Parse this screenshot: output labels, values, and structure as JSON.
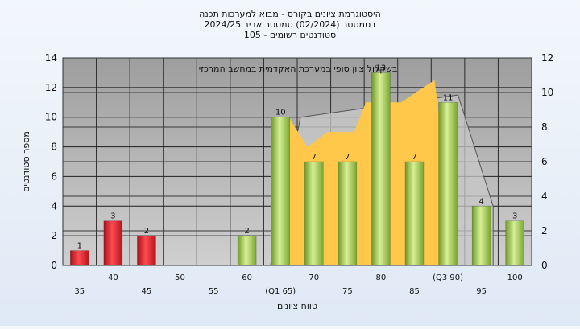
{
  "chart_data": {
    "type": "bar",
    "title_lines": [
      "היסטוגרמת ציונים בקורס - מבוא למערכות תכנה",
      "בסמסטר  (02/2024)  סמסטר אביב 2024/25",
      "סטודנטים רשומים - 105"
    ],
    "annotation": "בשקלול ציון סופי במערכת האקדמית במחשב המרכזי",
    "xlabel": "טווח ציונים",
    "ylabel": "מספר סטודנטים",
    "categories": [
      "35",
      "40",
      "45",
      "50",
      "55",
      "60",
      "(Q1 65)",
      "70",
      "75",
      "80",
      "85",
      "(Q3 90)",
      "95",
      "100"
    ],
    "values": [
      1,
      3,
      2,
      0,
      0,
      2,
      10,
      7,
      7,
      13,
      7,
      11,
      4,
      3
    ],
    "value_labels": [
      "1",
      "3",
      "2",
      "",
      "",
      "2",
      "10",
      "7",
      "7",
      "13",
      "7",
      "11",
      "4",
      "3"
    ],
    "bar_colors": [
      "#e0262e",
      "#e0262e",
      "#e0262e",
      "#e0262e",
      "#e0262e",
      "#8cc43c",
      "#8cc43c",
      "#8cc43c",
      "#8cc43c",
      "#8cc43c",
      "#8cc43c",
      "#8cc43c",
      "#8cc43c",
      "#8cc43c"
    ],
    "ylim_left": [
      0,
      14
    ],
    "yticks_left": [
      "0",
      "2",
      "4",
      "6",
      "8",
      "10",
      "12",
      "14"
    ],
    "ylim_right": [
      0,
      12
    ],
    "yticks_right": [
      "0",
      "2",
      "4",
      "6",
      "8",
      "10",
      "12"
    ],
    "area_series": {
      "color": "#ffc84a",
      "points": [
        [
          5,
          0
        ],
        [
          5.8,
          0
        ],
        [
          6.25,
          10
        ],
        [
          6.8,
          8
        ],
        [
          7.4,
          9
        ],
        [
          8.2,
          9
        ],
        [
          8.55,
          11
        ],
        [
          9.6,
          11
        ],
        [
          10.6,
          12.5
        ],
        [
          11.3,
          0
        ]
      ]
    },
    "outline_series": {
      "color": "#c8c8c8",
      "points": [
        [
          5.7,
          0
        ],
        [
          6.6,
          10
        ],
        [
          11.3,
          11.5
        ],
        [
          12.35,
          4
        ],
        [
          12.35,
          0
        ]
      ]
    },
    "grid": true,
    "legend": "none"
  }
}
